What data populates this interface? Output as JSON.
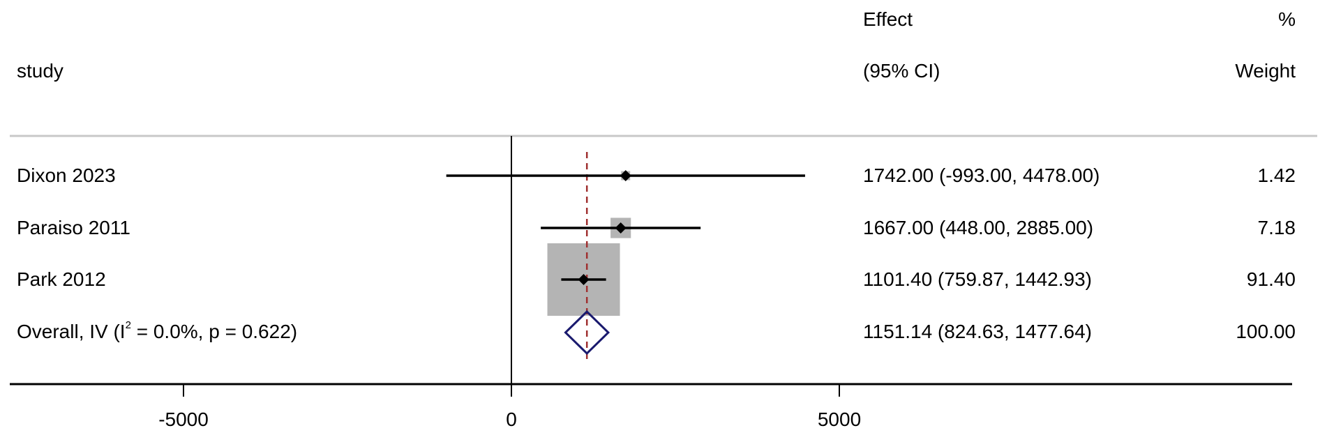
{
  "chart_data": {
    "type": "forest",
    "header": {
      "study_label": "study",
      "effect_line1": "Effect",
      "effect_line2": "(95% CI)",
      "weight_line1": "%",
      "weight_line2": "Weight"
    },
    "studies": [
      {
        "label": "Dixon 2023",
        "estimate": 1742.0,
        "ci_low": -993.0,
        "ci_high": 4478.0,
        "ci_text": "1742.00 (-993.00, 4478.00)",
        "weight": 1.42,
        "weight_text": "1.42"
      },
      {
        "label": "Paraiso 2011",
        "estimate": 1667.0,
        "ci_low": 448.0,
        "ci_high": 2885.0,
        "ci_text": "1667.00 (448.00, 2885.00)",
        "weight": 7.18,
        "weight_text": "7.18"
      },
      {
        "label": "Park 2012",
        "estimate": 1101.4,
        "ci_low": 759.87,
        "ci_high": 1442.93,
        "ci_text": "1101.40 (759.87, 1442.93)",
        "weight": 91.4,
        "weight_text": "91.40"
      }
    ],
    "overall": {
      "label_prefix": "Overall, IV (I",
      "label_sup": "2",
      "label_suffix": " = 0.0%, p = 0.622)",
      "estimate": 1151.14,
      "ci_low": 824.63,
      "ci_high": 1477.64,
      "ci_text": "1151.14 (824.63, 1477.64)",
      "weight": 100.0,
      "weight_text": "100.00"
    },
    "x_ticks": [
      -5000,
      0,
      5000
    ],
    "x_tick_labels": [
      "-5000",
      "0",
      "5000"
    ],
    "xlim": [
      -7500,
      12000
    ],
    "null_line": 0,
    "colors": {
      "estimate_marker": "#000000",
      "weight_box": "#b4b4b4",
      "overall_diamond": "#1a1a6e",
      "overall_line": "#a03030",
      "axis": "#000000",
      "header_rule": "#c8c8c8"
    }
  }
}
